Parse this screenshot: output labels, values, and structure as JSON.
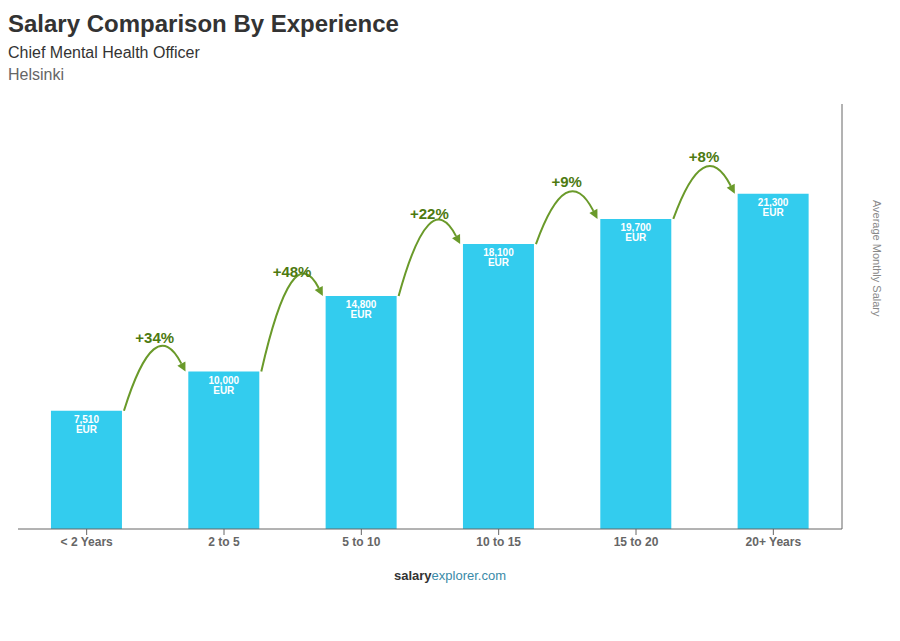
{
  "chart_data": {
    "type": "bar",
    "title": "Salary Comparison By Experience",
    "subtitle": "Chief Mental Health Officer",
    "city": "Helsinki",
    "categories": [
      "< 2 Years",
      "2 to 5",
      "5 to 10",
      "10 to 15",
      "15 to 20",
      "20+ Years"
    ],
    "values": [
      7510,
      10000,
      14800,
      18100,
      19700,
      21300
    ],
    "value_labels": [
      "7,510 EUR",
      "10,000 EUR",
      "14,800 EUR",
      "18,100 EUR",
      "19,700 EUR",
      "21,300 EUR"
    ],
    "data_labels": true,
    "annotations": [
      "+34%",
      "+48%",
      "+22%",
      "+9%",
      "+8%"
    ],
    "y_label": "Average Monthly Salary",
    "footer": [
      "salary",
      "explorer.com"
    ],
    "color": "#33ccee",
    "ylim": [
      0,
      27000
    ],
    "tick_labels": "x",
    "grid": false
  }
}
